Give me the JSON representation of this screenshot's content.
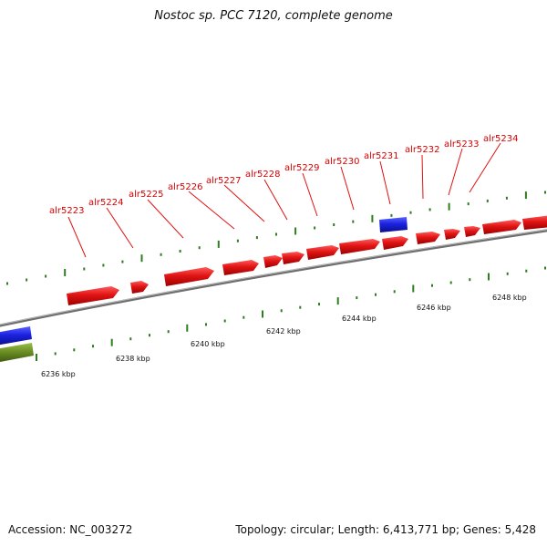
{
  "title": "Nostoc sp. PCC 7120, complete genome",
  "footer": {
    "accession": "Accession: NC_003272",
    "summary": "Topology: circular; Length: 6,413,771 bp; Genes: 5,428"
  },
  "colors": {
    "gene_red": "#e11414",
    "gene_blue": "#1b22e0",
    "gene_olive": "#6b8e23",
    "backbone": "#8a8a8a",
    "tick_green": "#2e7d1f",
    "label_red": "#d80000"
  },
  "gene_labels": [
    "alr5223",
    "alr5224",
    "alr5225",
    "alr5226",
    "alr5227",
    "alr5228",
    "alr5229",
    "alr5230",
    "alr5231",
    "alr5232",
    "alr5233",
    "alr5234"
  ],
  "kbp_labels": [
    "6236 kbp",
    "6238 kbp",
    "6240 kbp",
    "6242 kbp",
    "6244 kbp",
    "6246 kbp",
    "6248 kbp"
  ]
}
